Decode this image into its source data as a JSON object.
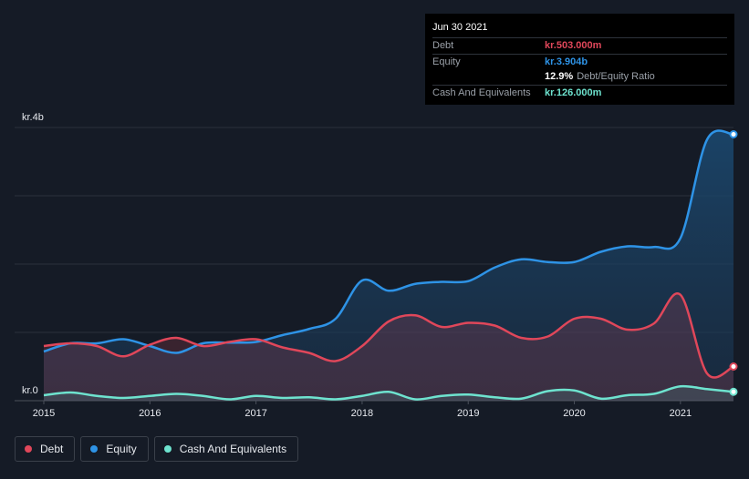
{
  "tooltip": {
    "date": "Jun 30 2021",
    "debt_label": "Debt",
    "debt_value": "kr.503.000m",
    "equity_label": "Equity",
    "equity_value": "kr.3.904b",
    "ratio_value": "12.9%",
    "ratio_label": "Debt/Equity Ratio",
    "cash_label": "Cash And Equivalents",
    "cash_value": "kr.126.000m"
  },
  "colors": {
    "debt": "#e0475a",
    "equity": "#2e93e6",
    "cash": "#6ee3cf",
    "background": "#151b26"
  },
  "legend": [
    {
      "label": "Debt",
      "color": "#e0475a"
    },
    {
      "label": "Equity",
      "color": "#2e93e6"
    },
    {
      "label": "Cash And Equivalents",
      "color": "#6ee3cf"
    }
  ],
  "chart_data": {
    "type": "area",
    "y_top_label": "kr.4b",
    "y_bottom_label": "kr.0",
    "ylim": [
      0,
      4.0
    ],
    "xlim": [
      2015.0,
      2021.5
    ],
    "x_ticks": [
      "2015",
      "2016",
      "2017",
      "2018",
      "2019",
      "2020",
      "2021"
    ],
    "grid": true,
    "legend_position": "bottom-left",
    "series": [
      {
        "name": "Debt",
        "x": [
          2015.0,
          2015.25,
          2015.5,
          2015.75,
          2016.0,
          2016.25,
          2016.5,
          2016.75,
          2017.0,
          2017.25,
          2017.5,
          2017.75,
          2018.0,
          2018.25,
          2018.5,
          2018.75,
          2019.0,
          2019.25,
          2019.5,
          2019.75,
          2020.0,
          2020.25,
          2020.5,
          2020.75,
          2021.0,
          2021.25,
          2021.5
        ],
        "values": [
          0.8,
          0.84,
          0.8,
          0.65,
          0.82,
          0.92,
          0.8,
          0.86,
          0.9,
          0.78,
          0.7,
          0.58,
          0.8,
          1.16,
          1.25,
          1.08,
          1.14,
          1.1,
          0.92,
          0.94,
          1.2,
          1.2,
          1.04,
          1.13,
          1.55,
          0.4,
          0.5
        ]
      },
      {
        "name": "Equity",
        "x": [
          2015.0,
          2015.25,
          2015.5,
          2015.75,
          2016.0,
          2016.25,
          2016.5,
          2016.75,
          2017.0,
          2017.25,
          2017.5,
          2017.75,
          2018.0,
          2018.25,
          2018.5,
          2018.75,
          2019.0,
          2019.25,
          2019.5,
          2019.75,
          2020.0,
          2020.25,
          2020.5,
          2020.75,
          2021.0,
          2021.25,
          2021.5
        ],
        "values": [
          0.72,
          0.84,
          0.84,
          0.9,
          0.8,
          0.7,
          0.84,
          0.85,
          0.86,
          0.96,
          1.05,
          1.2,
          1.76,
          1.61,
          1.71,
          1.74,
          1.75,
          1.95,
          2.07,
          2.03,
          2.03,
          2.18,
          2.26,
          2.25,
          2.38,
          3.82,
          3.9
        ]
      },
      {
        "name": "Cash And Equivalents",
        "x": [
          2015.0,
          2015.25,
          2015.5,
          2015.75,
          2016.0,
          2016.25,
          2016.5,
          2016.75,
          2017.0,
          2017.25,
          2017.5,
          2017.75,
          2018.0,
          2018.25,
          2018.5,
          2018.75,
          2019.0,
          2019.25,
          2019.5,
          2019.75,
          2020.0,
          2020.25,
          2020.5,
          2020.75,
          2021.0,
          2021.25,
          2021.5
        ],
        "values": [
          0.08,
          0.12,
          0.07,
          0.04,
          0.07,
          0.1,
          0.07,
          0.02,
          0.07,
          0.04,
          0.05,
          0.02,
          0.07,
          0.13,
          0.02,
          0.07,
          0.09,
          0.05,
          0.03,
          0.14,
          0.15,
          0.03,
          0.08,
          0.1,
          0.21,
          0.17,
          0.13
        ]
      }
    ]
  }
}
